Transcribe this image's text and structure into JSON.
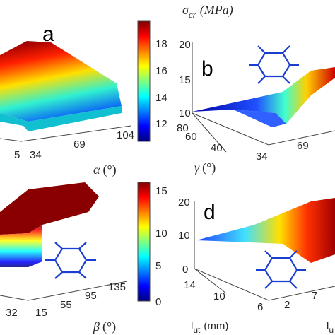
{
  "colorbar_top": {
    "symbol": "σ",
    "subscript": "cr",
    "unit": "(MPa)",
    "ticks": [
      "18",
      "16",
      "14",
      "12"
    ]
  },
  "colorbar_bottom": {
    "ticks": [
      "15",
      "10",
      "5",
      "0"
    ]
  },
  "panels": [
    {
      "label": "a",
      "x_ticks": [
        "5",
        "34",
        "69",
        "104"
      ],
      "axis_symbol": "α",
      "axis_unit": "(°)"
    },
    {
      "label": "b",
      "z_ticks": [
        "20",
        "15",
        "10"
      ],
      "y_ticks": [
        "80",
        "60",
        "40"
      ],
      "x_ticks": [
        "34",
        "69"
      ],
      "axis_symbol": "γ",
      "axis_unit": "(°)"
    },
    {
      "x_ticks": [
        "32",
        "15",
        "55",
        "95",
        "135"
      ],
      "axis_symbol": "β",
      "axis_unit": "(°)"
    },
    {
      "label": "d",
      "z_ticks": [
        "20",
        "10",
        "0"
      ],
      "y_ticks": [
        "14",
        "10",
        "6"
      ],
      "x_ticks": [
        "2",
        "7"
      ],
      "axis_symbol": "l",
      "axis_subscript": "ut",
      "axis_unit": "(mm)",
      "cut_symbol": "l",
      "cut_subscript": "u"
    }
  ]
}
